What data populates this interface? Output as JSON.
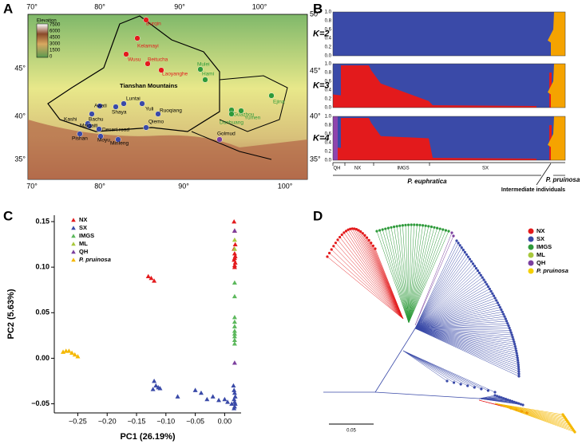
{
  "panels": [
    "A",
    "B",
    "C",
    "D"
  ],
  "map": {
    "lon_labels": [
      "70°",
      "80°",
      "90°",
      "100°"
    ],
    "lat_labels": [
      "50°",
      "45°",
      "40°",
      "35°"
    ],
    "legend_title": "Elevation",
    "legend_labels": [
      "7500",
      "6000",
      "4500",
      "3000",
      "1500",
      "0"
    ],
    "mountains": "Tianshan Mountains",
    "sites": [
      "Burqin",
      "Kelamayi",
      "Wusu",
      "Beitucha",
      "Laoyanghe",
      "Mulei",
      "Hami",
      "Ejina",
      "Guazhou",
      "Yumen",
      "Dunhuang",
      "Awati",
      "Bachu",
      "Shaya",
      "Luntai",
      "Yuli",
      "Ruoqiang",
      "Kashi",
      "Maigaiti",
      "Desert road",
      "Pishan",
      "Moyu",
      "Minfeng",
      "Qiemo",
      "Golmud"
    ]
  },
  "structure": {
    "rows": [
      "K=2",
      "K=3",
      "K=4"
    ],
    "yticks": [
      "1.0",
      "0.8",
      "0.6",
      "0.4",
      "0.2",
      "0.0"
    ],
    "groups": [
      "QH",
      "NX",
      "IMGS",
      "SX"
    ],
    "species": [
      "P. euphratica",
      "Intermediate individuals",
      "P. pruinosa"
    ]
  },
  "chart_data": {
    "type": "scatter",
    "xlabel": "PC1 (26.19%)",
    "ylabel": "PC2 (5.63%)",
    "xlim": [
      -0.29,
      0.028
    ],
    "ylim": [
      -0.06,
      0.157
    ],
    "xticks": [
      {
        "value": -0.25,
        "label": "−0.25"
      },
      {
        "value": -0.2,
        "label": "−0.20"
      },
      {
        "value": -0.15,
        "label": "−0.15"
      },
      {
        "value": -0.1,
        "label": "−0.10"
      },
      {
        "value": -0.05,
        "label": "−0.05"
      },
      {
        "value": 0,
        "label": "0.00"
      }
    ],
    "yticks": [
      {
        "value": -0.05,
        "label": "−0.05"
      },
      {
        "value": 0,
        "label": "0.00"
      },
      {
        "value": 0.05,
        "label": "0.05"
      },
      {
        "value": 0.1,
        "label": "0.10"
      },
      {
        "value": 0.15,
        "label": "0.15"
      }
    ],
    "series": [
      {
        "name": "NX",
        "color": "#e31a1c",
        "x": [
          -0.13,
          -0.125,
          -0.12,
          0.016,
          0.017,
          0.018,
          0.016,
          0.017,
          0.018,
          0.017,
          0.016,
          0.018,
          0.017,
          0.017
        ],
        "values": [
          0.09,
          0.088,
          0.085,
          0.15,
          0.14,
          0.125,
          0.12,
          0.115,
          0.112,
          0.11,
          0.108,
          0.105,
          0.102,
          0.1
        ]
      },
      {
        "name": "SX",
        "color": "#3a4aa8",
        "x": [
          -0.12,
          -0.117,
          -0.122,
          -0.113,
          -0.11,
          -0.08,
          -0.05,
          -0.04,
          -0.03,
          -0.02,
          -0.01,
          0.0,
          0.005,
          0.012,
          0.015,
          0.016,
          0.017,
          0.018,
          0.016,
          0.017,
          0.018,
          0.017,
          0.016
        ],
        "values": [
          -0.025,
          -0.03,
          -0.034,
          -0.032,
          -0.033,
          -0.042,
          -0.035,
          -0.038,
          -0.045,
          -0.042,
          -0.046,
          -0.045,
          -0.048,
          -0.05,
          -0.03,
          -0.035,
          -0.038,
          -0.042,
          -0.045,
          -0.048,
          -0.05,
          -0.053,
          -0.055
        ]
      },
      {
        "name": "IMGS",
        "color": "#5cb85c",
        "x": [
          0.017,
          0.017,
          0.017,
          0.017,
          0.017,
          0.017,
          0.017,
          0.017,
          0.017,
          0.017
        ],
        "values": [
          0.083,
          0.068,
          0.045,
          0.04,
          0.035,
          0.03,
          0.027,
          0.024,
          0.02,
          0.016
        ]
      },
      {
        "name": "ML",
        "color": "#a8c83c",
        "x": [
          0.017,
          0.017
        ],
        "values": [
          0.13,
          0.12
        ]
      },
      {
        "name": "QH",
        "color": "#7b3f9e",
        "x": [
          0.017,
          0.017
        ],
        "values": [
          0.14,
          -0.005
        ]
      },
      {
        "name": "P. pruinosa",
        "color": "#f5b800",
        "x": [
          -0.275,
          -0.27,
          -0.265,
          -0.26,
          -0.255,
          -0.25
        ],
        "values": [
          0.007,
          0.008,
          0.008,
          0.006,
          0.004,
          0.002
        ]
      }
    ]
  },
  "tree": {
    "legend": [
      "NX",
      "SX",
      "IMGS",
      "ML",
      "QH",
      "P. pruinosa"
    ],
    "scale": "0.05"
  }
}
